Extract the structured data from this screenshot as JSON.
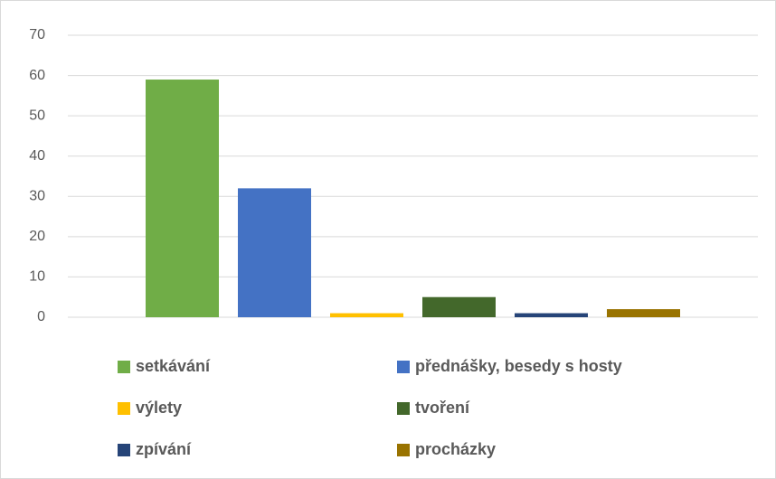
{
  "chart_data": {
    "type": "bar",
    "categories": [
      null
    ],
    "series": [
      {
        "name": "setkávání",
        "color": "#70ad47",
        "values": [
          59
        ]
      },
      {
        "name": "přednášky, besedy s hosty",
        "color": "#4472c4",
        "values": [
          32
        ]
      },
      {
        "name": "výlety",
        "color": "#ffc000",
        "values": [
          1
        ]
      },
      {
        "name": "tvoření",
        "color": "#43682b",
        "values": [
          5
        ]
      },
      {
        "name": "zpívání",
        "color": "#264478",
        "values": [
          1
        ]
      },
      {
        "name": "procházky",
        "color": "#997300",
        "values": [
          2
        ]
      }
    ],
    "ylim": [
      0,
      70
    ],
    "yticks": [
      0,
      10,
      20,
      30,
      40,
      50,
      60,
      70
    ],
    "grid": true,
    "legend": "bottom"
  }
}
